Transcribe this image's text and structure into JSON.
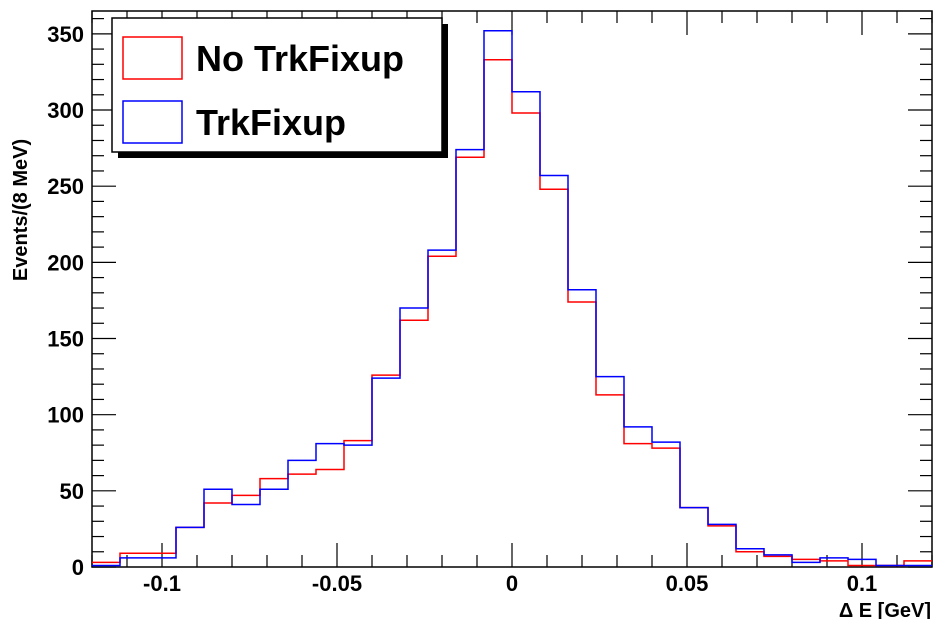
{
  "chart_data": {
    "type": "histogram",
    "xlabel": "Δ E [GeV]",
    "ylabel": "Events/(8 MeV)",
    "xlim": [
      -0.12,
      0.12
    ],
    "ylim": [
      0,
      365
    ],
    "bin_width": 0.008,
    "x_ticks": [
      -0.1,
      -0.05,
      0,
      0.05,
      0.1
    ],
    "x_tick_labels": [
      "-0.1",
      "-0.05",
      "0",
      "0.05",
      "0.1"
    ],
    "y_ticks": [
      0,
      50,
      100,
      150,
      200,
      250,
      300,
      350
    ],
    "y_tick_labels": [
      "0",
      "50",
      "100",
      "150",
      "200",
      "250",
      "300",
      "350"
    ],
    "legend_position": "top-left",
    "bin_edges": [
      -0.12,
      -0.112,
      -0.104,
      -0.096,
      -0.088,
      -0.08,
      -0.072,
      -0.064,
      -0.056,
      -0.048,
      -0.04,
      -0.032,
      -0.024,
      -0.016,
      -0.008,
      0,
      0.008,
      0.016,
      0.024,
      0.032,
      0.04,
      0.048,
      0.056,
      0.064,
      0.072,
      0.08,
      0.088,
      0.096,
      0.104,
      0.112,
      0.12
    ],
    "series": [
      {
        "name": "No TrkFixup",
        "color": "#ff0000",
        "values": [
          3,
          9,
          9,
          26,
          42,
          47,
          58,
          61,
          64,
          83,
          126,
          162,
          204,
          269,
          333,
          298,
          248,
          174,
          113,
          81,
          78,
          39,
          27,
          10,
          7,
          5,
          4,
          1,
          1,
          4
        ]
      },
      {
        "name": "TrkFixup",
        "color": "#0000ff",
        "values": [
          1,
          6,
          6,
          26,
          51,
          41,
          51,
          70,
          81,
          80,
          124,
          170,
          208,
          274,
          352,
          312,
          257,
          182,
          125,
          92,
          82,
          39,
          28,
          12,
          8,
          3,
          6,
          5,
          1,
          1
        ]
      }
    ]
  }
}
